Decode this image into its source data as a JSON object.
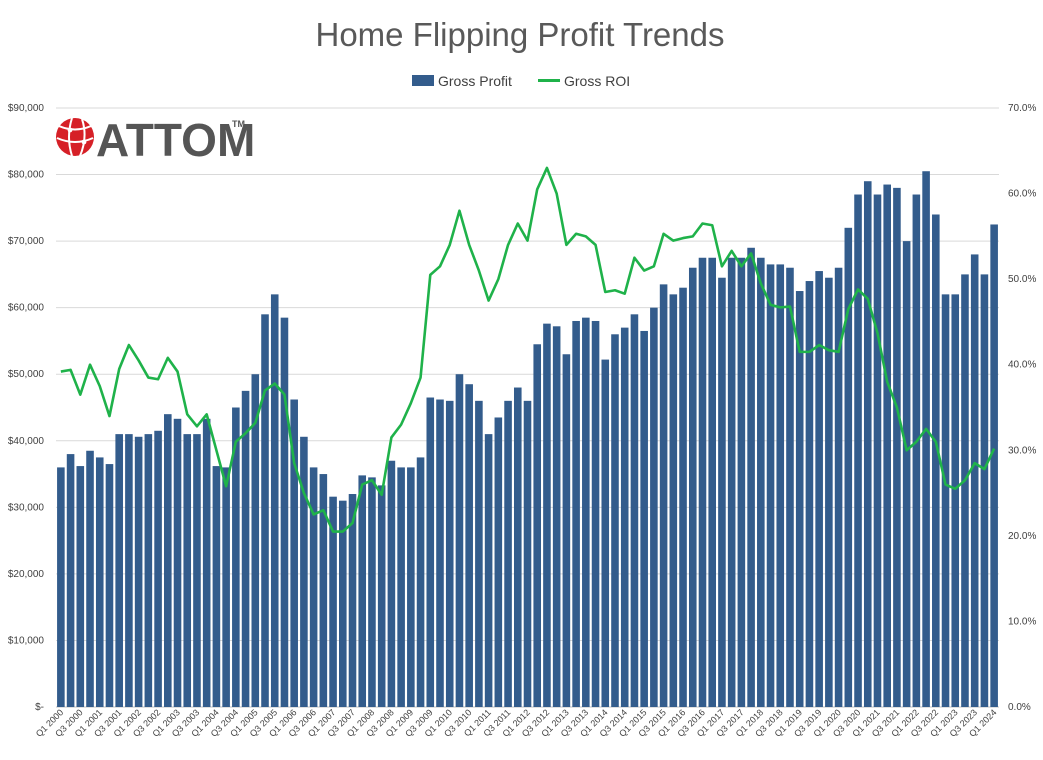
{
  "logo": {
    "text": "ATTOM",
    "tm": "TM"
  },
  "chart_data": {
    "type": "bar",
    "title": "Home Flipping  Profit Trends",
    "colors": {
      "bar": "#335c8c",
      "line": "#1fb24a",
      "grid": "#d9d9d9",
      "axis": "#bfbfbf"
    },
    "legend_placement": "top-center",
    "grid": true,
    "left_axis": {
      "ylim": [
        0,
        90000
      ],
      "ticks": [
        "$-",
        "$10,000",
        "$20,000",
        "$30,000",
        "$40,000",
        "$50,000",
        "$60,000",
        "$70,000",
        "$80,000",
        "$90,000"
      ]
    },
    "right_axis": {
      "ylim": [
        0,
        70
      ],
      "ticks": [
        "0.0%",
        "10.0%",
        "20.0%",
        "30.0%",
        "40.0%",
        "50.0%",
        "60.0%",
        "70.0%"
      ]
    },
    "x_tick_labels": [
      "Q1 2000",
      "Q3 2000",
      "Q1 2001",
      "Q3 2001",
      "Q1 2002",
      "Q3 2002",
      "Q1 2003",
      "Q3 2003",
      "Q1 2004",
      "Q3 2004",
      "Q1 2005",
      "Q3 2005",
      "Q1 2006",
      "Q3 2006",
      "Q1 2007",
      "Q3 2007",
      "Q1 2008",
      "Q3 2008",
      "Q1 2009",
      "Q3 2009",
      "Q1 2010",
      "Q3 2010",
      "Q1 2011",
      "Q3 2011",
      "Q1 2012",
      "Q3 2012",
      "Q1 2013",
      "Q3 2013",
      "Q1 2014",
      "Q3 2014",
      "Q1 2015",
      "Q3 2015",
      "Q1 2016",
      "Q3 2016",
      "Q1 2017",
      "Q3 2017",
      "Q1 2018",
      "Q3 2018",
      "Q1 2019",
      "Q3 2019",
      "Q1 2020",
      "Q3 2020",
      "Q1 2021",
      "Q3 2021",
      "Q1 2022",
      "Q3 2022",
      "Q1 2023",
      "Q3 2023",
      "Q1 2024"
    ],
    "series": [
      {
        "name": "Gross Profit",
        "type": "bar",
        "axis": "left",
        "values": [
          36000,
          38000,
          36200,
          38500,
          37500,
          36500,
          41000,
          41000,
          40600,
          41000,
          41500,
          44000,
          43300,
          41000,
          41000,
          43300,
          36200,
          36000,
          45000,
          47500,
          50000,
          59000,
          62000,
          58500,
          46200,
          40600,
          36000,
          35000,
          31600,
          31000,
          32000,
          34800,
          34500,
          33300,
          37000,
          36000,
          36000,
          37500,
          46500,
          46200,
          46000,
          50000,
          48500,
          46000,
          41000,
          43500,
          46000,
          48000,
          46000,
          54500,
          57600,
          57200,
          53000,
          58000,
          58500,
          58000,
          52200,
          56000,
          57000,
          59000,
          56500,
          60000,
          63500,
          62000,
          63000,
          66000,
          67500,
          67500,
          64500,
          67500,
          67500,
          69000,
          67500,
          66500,
          66500,
          66000,
          62500,
          64000,
          65500,
          64500,
          66000,
          72000,
          77000,
          79000,
          77000,
          78500,
          78000,
          70000,
          77000,
          80500,
          74000,
          62000,
          62000,
          65000,
          68000,
          65000,
          72500
        ]
      },
      {
        "name": "Gross ROI",
        "type": "line",
        "axis": "right",
        "values": [
          39.2,
          39.4,
          36.5,
          40.0,
          37.5,
          34.0,
          39.5,
          42.3,
          40.5,
          38.5,
          38.3,
          40.8,
          39.2,
          34.2,
          32.8,
          34.2,
          30.0,
          25.8,
          31.0,
          32.0,
          33.2,
          37.0,
          37.8,
          36.5,
          28.5,
          25.0,
          22.5,
          23.0,
          20.5,
          20.5,
          21.5,
          26.0,
          26.5,
          24.8,
          31.5,
          33.0,
          35.5,
          38.5,
          50.5,
          51.5,
          54.0,
          58.0,
          54.0,
          51.0,
          47.5,
          50.0,
          54.0,
          56.5,
          54.5,
          60.5,
          63.0,
          60.0,
          54.0,
          55.3,
          55.0,
          54.0,
          48.5,
          48.7,
          48.3,
          52.5,
          51.0,
          51.5,
          55.3,
          54.5,
          54.8,
          55.0,
          56.5,
          56.3,
          51.5,
          53.3,
          51.5,
          53.0,
          49.5,
          47.0,
          46.7,
          46.8,
          41.5,
          41.5,
          42.3,
          41.7,
          41.5,
          46.5,
          48.8,
          47.7,
          43.7,
          38.0,
          35.0,
          30.0,
          31.0,
          32.5,
          31.0,
          26.0,
          25.5,
          26.5,
          28.5,
          27.8,
          30.2
        ]
      }
    ]
  }
}
